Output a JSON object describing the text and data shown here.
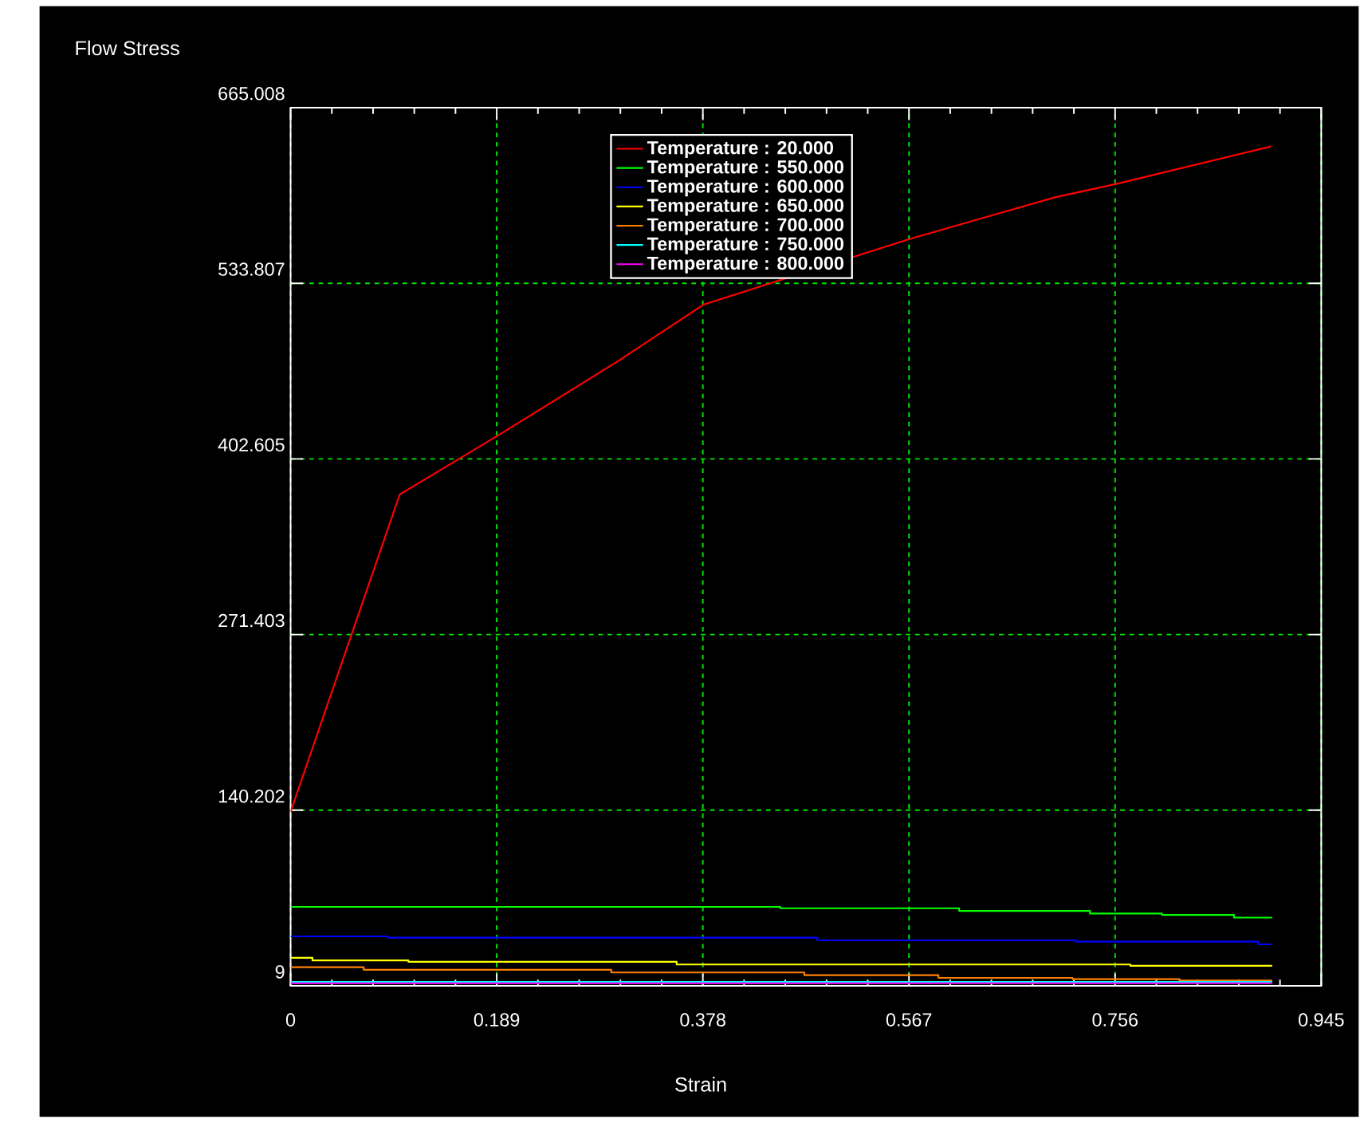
{
  "chart_data": {
    "type": "line",
    "xlabel": "Strain",
    "ylabel": "Flow Stress",
    "xlim": [
      0,
      0.945
    ],
    "xticks": [
      0,
      0.189,
      0.378,
      0.567,
      0.756,
      0.945
    ],
    "ylim": [
      9,
      665.008
    ],
    "yticks": [
      9,
      140.202,
      271.403,
      402.605,
      533.807,
      665.008
    ],
    "grid": true,
    "legend": "top",
    "series": [
      {
        "name": "Temperature : 20.000",
        "color": "#ff0000",
        "x": [
          0,
          0.1,
          0.19,
          0.297,
          0.379,
          0.468,
          0.568,
          0.645,
          0.701,
          0.757,
          0.899
        ],
        "values": [
          139,
          376,
          420,
          474,
          518,
          null,
          567,
          585,
          598,
          608,
          636
        ]
      },
      {
        "name": "Temperature : 550.000",
        "type": "step",
        "color": "#00ff00",
        "x": [
          0,
          0.449,
          0.613,
          0.733,
          0.799,
          0.865,
          0.9
        ],
        "values": [
          68,
          67,
          65,
          63,
          62,
          60,
          60
        ]
      },
      {
        "name": "Temperature : 600.000",
        "type": "step",
        "color": "#0000ff",
        "x": [
          0,
          0.089,
          0.483,
          0.72,
          0.887,
          0.9
        ],
        "values": [
          46,
          45,
          43,
          42,
          40,
          40
        ]
      },
      {
        "name": "Temperature : 650.000",
        "type": "step",
        "color": "#ffff00",
        "x": [
          0,
          0.02,
          0.108,
          0.354,
          0.77,
          0.9
        ],
        "values": [
          30,
          28,
          27,
          25,
          24,
          24
        ]
      },
      {
        "name": "Temperature : 700.000",
        "type": "step",
        "color": "#ff8000",
        "x": [
          0,
          0.067,
          0.294,
          0.471,
          0.594,
          0.717,
          0.815,
          0.9
        ],
        "values": [
          23,
          21,
          19,
          17,
          15,
          14,
          13,
          13
        ]
      },
      {
        "name": "Temperature : 750.000",
        "type": "step",
        "color": "#00ffff",
        "x": [
          0,
          0.9
        ],
        "values": [
          12,
          12
        ]
      },
      {
        "name": "Temperature : 800.000",
        "type": "step",
        "color": "#ff00ff",
        "x": [
          0,
          0.9
        ],
        "values": [
          11,
          11
        ]
      }
    ]
  }
}
